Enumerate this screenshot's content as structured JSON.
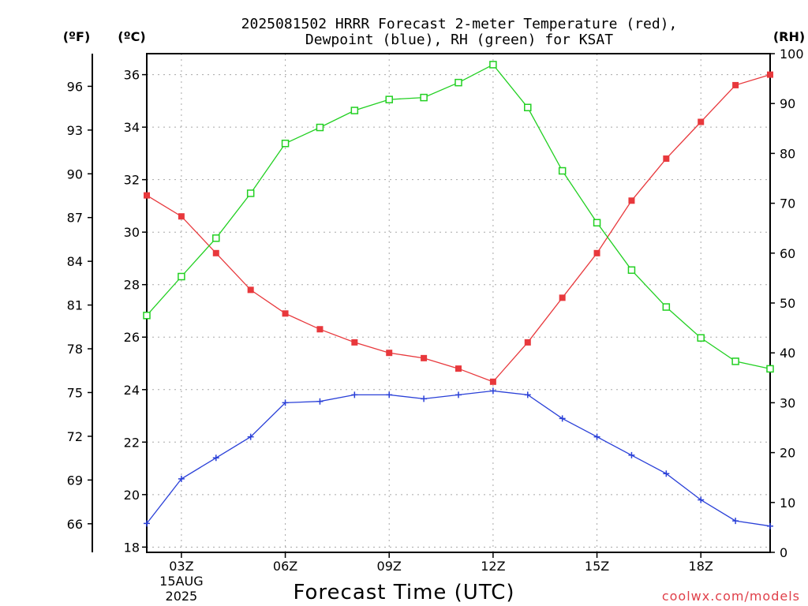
{
  "header": {
    "title_line1": "2025081502 HRRR Forecast 2-meter Temperature (red),",
    "title_line2": "Dewpoint (blue), RH (green) for KSAT",
    "unit_f": "(ºF)",
    "unit_c": "(ºC)",
    "unit_rh": "(RH)"
  },
  "footer": {
    "xlabel": "Forecast Time (UTC)",
    "credit": "coolwx.com/models"
  },
  "chart_data": {
    "type": "line",
    "title": "2025081502 HRRR Forecast 2-meter Temperature (red), Dewpoint (blue), RH (green) for KSAT",
    "xlabel": "Forecast Time (UTC)",
    "x_hours": [
      2,
      3,
      4,
      5,
      6,
      7,
      8,
      9,
      10,
      11,
      12,
      13,
      14,
      15,
      16,
      17,
      18,
      19,
      20
    ],
    "xlim": [
      2,
      20
    ],
    "x_ticks": [
      {
        "x": 3,
        "label": "03Z"
      },
      {
        "x": 6,
        "label": "06Z"
      },
      {
        "x": 9,
        "label": "09Z"
      },
      {
        "x": 12,
        "label": "12Z"
      },
      {
        "x": 15,
        "label": "15Z"
      },
      {
        "x": 18,
        "label": "18Z"
      }
    ],
    "x_date_label": [
      "15AUG",
      "2025"
    ],
    "ylabel_celsius": "(ºC)",
    "ylabel_fahrenheit": "(ºF)",
    "ylabel_rh": "(RH)",
    "ylim_celsius": [
      17.8,
      36.8
    ],
    "ylim_rh": [
      0,
      100
    ],
    "yticks_celsius": [
      18,
      20,
      22,
      24,
      26,
      28,
      30,
      32,
      34,
      36
    ],
    "yticks_fahrenheit": [
      66,
      69,
      72,
      75,
      78,
      81,
      84,
      87,
      90,
      93,
      96
    ],
    "yticks_rh": [
      0,
      10,
      20,
      30,
      40,
      50,
      60,
      70,
      80,
      90,
      100
    ],
    "grid": true,
    "series": [
      {
        "name": "Temperature",
        "axis": "celsius",
        "color": "#e8383c",
        "marker": "filled-square",
        "values": [
          31.4,
          30.6,
          29.2,
          27.8,
          26.9,
          26.3,
          25.8,
          25.4,
          25.2,
          24.8,
          24.3,
          25.8,
          27.5,
          29.2,
          31.2,
          32.8,
          34.2,
          35.6,
          36.0
        ]
      },
      {
        "name": "Dewpoint",
        "axis": "celsius",
        "color": "#2a40d8",
        "marker": "plus",
        "values": [
          18.9,
          20.6,
          21.4,
          22.2,
          23.5,
          23.55,
          23.8,
          23.8,
          23.65,
          23.8,
          23.95,
          23.8,
          22.9,
          22.2,
          21.5,
          20.8,
          19.8,
          19.0,
          18.8
        ]
      },
      {
        "name": "RH",
        "axis": "rh",
        "color": "#22d022",
        "marker": "open-square",
        "values": [
          47.5,
          55.3,
          63.0,
          72.0,
          82.0,
          85.2,
          88.6,
          90.8,
          91.2,
          94.2,
          97.8,
          89.2,
          76.5,
          66.1,
          56.6,
          49.2,
          43.0,
          38.3,
          36.8
        ]
      }
    ]
  }
}
